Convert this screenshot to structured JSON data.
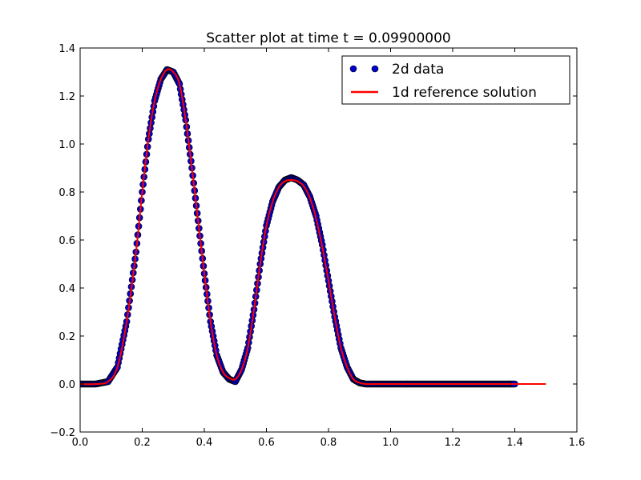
{
  "chart_data": {
    "type": "scatter",
    "title": "Scatter plot at time t =      0.09900000",
    "xlabel": "",
    "ylabel": "",
    "xlim": [
      0.0,
      1.6
    ],
    "ylim": [
      -0.2,
      1.4
    ],
    "x_ticks": [
      "0.0",
      "0.2",
      "0.4",
      "0.6",
      "0.8",
      "1.0",
      "1.2",
      "1.4",
      "1.6"
    ],
    "y_ticks": [
      "−0.2",
      "0.0",
      "0.2",
      "0.4",
      "0.6",
      "0.8",
      "1.0",
      "1.2",
      "1.4"
    ],
    "grid": false,
    "legend_position": "top-right",
    "series": [
      {
        "name": "2d data",
        "kind": "markers",
        "color": "#0000cc",
        "x": [
          0.0,
          0.05,
          0.09,
          0.12,
          0.15,
          0.18,
          0.2,
          0.22,
          0.24,
          0.26,
          0.28,
          0.3,
          0.32,
          0.34,
          0.36,
          0.38,
          0.4,
          0.42,
          0.44,
          0.46,
          0.48,
          0.5,
          0.52,
          0.54,
          0.56,
          0.58,
          0.6,
          0.62,
          0.64,
          0.66,
          0.68,
          0.7,
          0.72,
          0.74,
          0.76,
          0.78,
          0.8,
          0.82,
          0.84,
          0.86,
          0.88,
          0.9,
          0.92,
          0.95,
          1.0,
          1.1,
          1.2,
          1.3,
          1.4
        ],
        "y": [
          0.0,
          0.0,
          0.01,
          0.07,
          0.26,
          0.55,
          0.8,
          1.02,
          1.18,
          1.27,
          1.31,
          1.3,
          1.25,
          1.1,
          0.9,
          0.68,
          0.46,
          0.26,
          0.12,
          0.05,
          0.02,
          0.01,
          0.06,
          0.15,
          0.31,
          0.5,
          0.66,
          0.76,
          0.82,
          0.85,
          0.86,
          0.85,
          0.83,
          0.78,
          0.7,
          0.58,
          0.43,
          0.28,
          0.15,
          0.07,
          0.02,
          0.005,
          0.0,
          0.0,
          0.0,
          0.0,
          0.0,
          0.0,
          0.0
        ]
      },
      {
        "name": "1d reference solution",
        "kind": "line",
        "color": "#ff0000",
        "x": [
          0.0,
          0.05,
          0.09,
          0.12,
          0.15,
          0.18,
          0.2,
          0.22,
          0.24,
          0.26,
          0.28,
          0.3,
          0.32,
          0.34,
          0.36,
          0.38,
          0.4,
          0.42,
          0.44,
          0.46,
          0.48,
          0.5,
          0.52,
          0.54,
          0.56,
          0.58,
          0.6,
          0.62,
          0.64,
          0.66,
          0.68,
          0.7,
          0.72,
          0.74,
          0.76,
          0.78,
          0.8,
          0.82,
          0.84,
          0.86,
          0.88,
          0.9,
          0.92,
          0.95,
          1.0,
          1.1,
          1.2,
          1.3,
          1.4,
          1.5
        ],
        "y": [
          0.0,
          0.0,
          0.01,
          0.07,
          0.26,
          0.55,
          0.8,
          1.02,
          1.18,
          1.27,
          1.31,
          1.3,
          1.25,
          1.1,
          0.9,
          0.68,
          0.46,
          0.26,
          0.12,
          0.05,
          0.025,
          0.02,
          0.06,
          0.15,
          0.31,
          0.5,
          0.66,
          0.76,
          0.82,
          0.845,
          0.85,
          0.845,
          0.825,
          0.775,
          0.69,
          0.57,
          0.43,
          0.28,
          0.15,
          0.07,
          0.02,
          0.005,
          0.0,
          0.0,
          0.0,
          0.0,
          0.0,
          0.0,
          0.0,
          0.0
        ]
      }
    ]
  }
}
